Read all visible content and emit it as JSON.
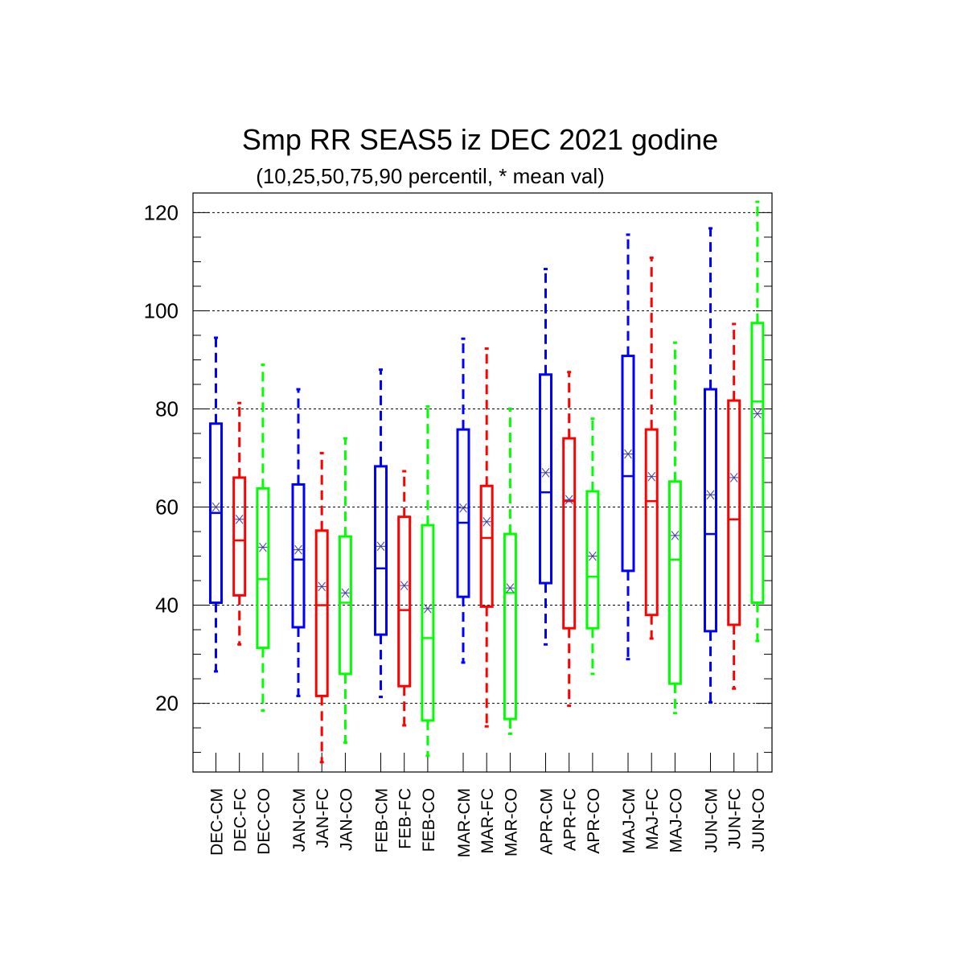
{
  "chart_data": {
    "type": "box",
    "title": "Smp RR SEAS5 iz DEC 2021 godine",
    "subtitle": "(10,25,50,75,90 percentil, * mean val)",
    "xlabel": "",
    "ylabel": "",
    "ylim": [
      6,
      124
    ],
    "yticks": [
      20,
      40,
      60,
      80,
      100,
      120
    ],
    "grid": true,
    "colors": {
      "CM": "#0000ff",
      "FC": "#ff0000",
      "CO": "#00ff00",
      "mean_marker": "#3a3aa0"
    },
    "series": [
      {
        "name": "CM",
        "color": "#0000ff"
      },
      {
        "name": "FC",
        "color": "#ff0000"
      },
      {
        "name": "CO",
        "color": "#00ff00"
      }
    ],
    "categories": [
      "DEC-CM",
      "DEC-FC",
      "DEC-CO",
      "JAN-CM",
      "JAN-FC",
      "JAN-CO",
      "FEB-CM",
      "FEB-FC",
      "FEB-CO",
      "MAR-CM",
      "MAR-FC",
      "MAR-CO",
      "APR-CM",
      "APR-FC",
      "APR-CO",
      "MAJ-CM",
      "MAJ-FC",
      "MAJ-CO",
      "JUN-CM",
      "JUN-FC",
      "JUN-CO"
    ],
    "boxes": [
      {
        "label": "DEC-CM",
        "series": "CM",
        "p10": 26.5,
        "p25": 40.5,
        "p50": 58.8,
        "p75": 77.0,
        "p90": 94.5,
        "mean": 60.0
      },
      {
        "label": "DEC-FC",
        "series": "FC",
        "p10": 32.0,
        "p25": 42.0,
        "p50": 53.2,
        "p75": 66.0,
        "p90": 81.2,
        "mean": 57.5
      },
      {
        "label": "DEC-CO",
        "series": "CO",
        "p10": 18.5,
        "p25": 31.3,
        "p50": 45.3,
        "p75": 63.8,
        "p90": 89.0,
        "mean": 51.8
      },
      {
        "label": "JAN-CM",
        "series": "CM",
        "p10": 21.5,
        "p25": 35.5,
        "p50": 49.3,
        "p75": 64.6,
        "p90": 84.0,
        "mean": 51.3
      },
      {
        "label": "JAN-FC",
        "series": "FC",
        "p10": 8.0,
        "p25": 21.5,
        "p50": 40.0,
        "p75": 55.2,
        "p90": 71.0,
        "mean": 43.8
      },
      {
        "label": "JAN-CO",
        "series": "CO",
        "p10": 12.0,
        "p25": 26.0,
        "p50": 40.5,
        "p75": 54.0,
        "p90": 74.0,
        "mean": 42.5
      },
      {
        "label": "FEB-CM",
        "series": "CM",
        "p10": 21.3,
        "p25": 34.0,
        "p50": 47.5,
        "p75": 68.3,
        "p90": 88.0,
        "mean": 52.0
      },
      {
        "label": "FEB-FC",
        "series": "FC",
        "p10": 15.5,
        "p25": 23.5,
        "p50": 39.0,
        "p75": 58.0,
        "p90": 67.3,
        "mean": 44.0
      },
      {
        "label": "FEB-CO",
        "series": "CO",
        "p10": 9.3,
        "p25": 16.5,
        "p50": 33.3,
        "p75": 56.3,
        "p90": 80.5,
        "mean": 39.3
      },
      {
        "label": "MAR-CM",
        "series": "CM",
        "p10": 28.3,
        "p25": 41.7,
        "p50": 56.8,
        "p75": 75.8,
        "p90": 94.3,
        "mean": 59.8
      },
      {
        "label": "MAR-FC",
        "series": "FC",
        "p10": 15.3,
        "p25": 39.7,
        "p50": 53.7,
        "p75": 64.3,
        "p90": 92.3,
        "mean": 57.0
      },
      {
        "label": "MAR-CO",
        "series": "CO",
        "p10": 13.8,
        "p25": 16.8,
        "p50": 42.5,
        "p75": 54.5,
        "p90": 80.0,
        "mean": 43.5
      },
      {
        "label": "APR-CM",
        "series": "CM",
        "p10": 32.0,
        "p25": 44.5,
        "p50": 63.0,
        "p75": 87.0,
        "p90": 108.5,
        "mean": 67.0
      },
      {
        "label": "APR-FC",
        "series": "FC",
        "p10": 19.5,
        "p25": 35.3,
        "p50": 61.2,
        "p75": 74.0,
        "p90": 87.5,
        "mean": 61.5
      },
      {
        "label": "APR-CO",
        "series": "CO",
        "p10": 26.0,
        "p25": 35.3,
        "p50": 45.8,
        "p75": 63.2,
        "p90": 78.0,
        "mean": 50.0
      },
      {
        "label": "MAJ-CM",
        "series": "CM",
        "p10": 29.0,
        "p25": 47.0,
        "p50": 66.3,
        "p75": 90.8,
        "p90": 115.5,
        "mean": 70.8
      },
      {
        "label": "MAJ-FC",
        "series": "FC",
        "p10": 33.2,
        "p25": 38.0,
        "p50": 61.2,
        "p75": 75.8,
        "p90": 110.8,
        "mean": 66.2
      },
      {
        "label": "MAJ-CO",
        "series": "CO",
        "p10": 18.0,
        "p25": 24.0,
        "p50": 49.3,
        "p75": 65.2,
        "p90": 93.5,
        "mean": 54.2
      },
      {
        "label": "JUN-CM",
        "series": "CM",
        "p10": 20.2,
        "p25": 34.7,
        "p50": 54.5,
        "p75": 84.0,
        "p90": 116.8,
        "mean": 62.5
      },
      {
        "label": "JUN-FC",
        "series": "FC",
        "p10": 23.0,
        "p25": 36.0,
        "p50": 57.5,
        "p75": 81.7,
        "p90": 97.3,
        "mean": 66.0
      },
      {
        "label": "JUN-CO",
        "series": "CO",
        "p10": 32.7,
        "p25": 40.5,
        "p50": 81.5,
        "p75": 97.5,
        "p90": 122.2,
        "mean": 79.0
      }
    ]
  }
}
